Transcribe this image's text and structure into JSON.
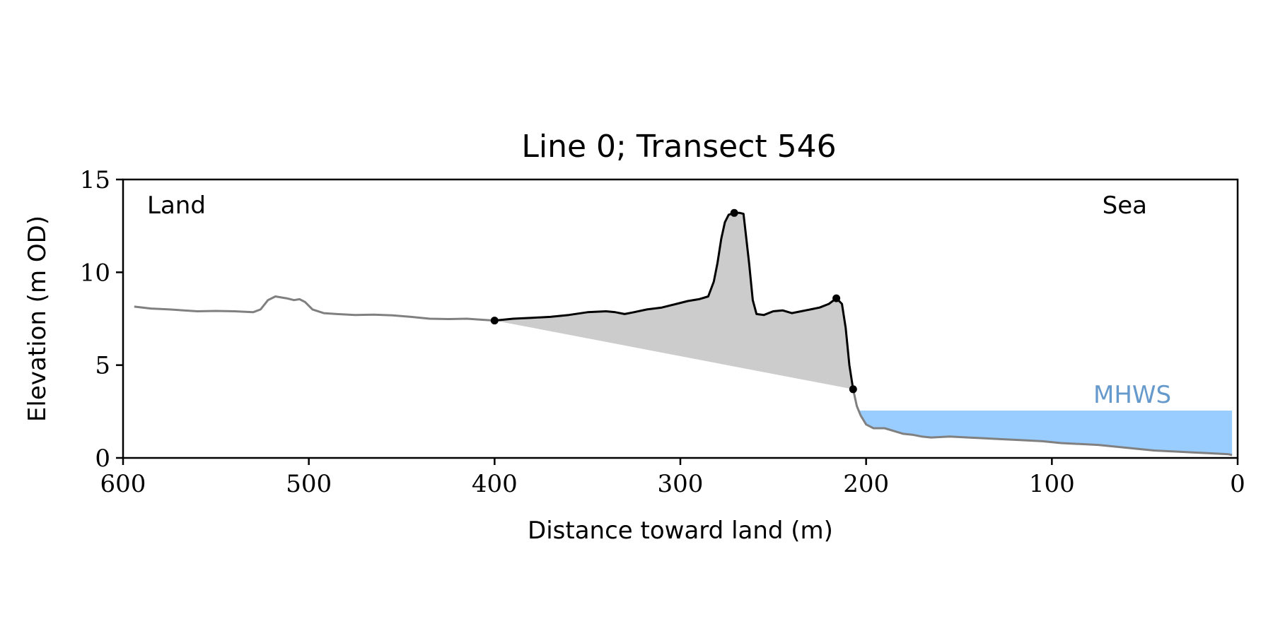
{
  "chart_data": {
    "type": "line",
    "title": "Line 0; Transect 546",
    "xlabel": "Distance toward land (m)",
    "ylabel": "Elevation (m OD)",
    "xlim": [
      600,
      0
    ],
    "ylim": [
      0,
      15
    ],
    "x_ticks": [
      600,
      500,
      400,
      300,
      200,
      100,
      0
    ],
    "y_ticks": [
      0,
      5,
      10,
      15
    ],
    "grid": false,
    "annotations": {
      "land": "Land",
      "sea": "Sea",
      "mhws": "MHWS"
    },
    "mhws_level": 2.55,
    "colors": {
      "profile": "#808080",
      "dune": "#000000",
      "fill": "#cccccc",
      "mhws_fill": "#99ccff",
      "mhws_text": "#6699cc"
    },
    "series": [
      {
        "values": [
          [
            594,
            8.15
          ],
          [
            585,
            8.05
          ],
          [
            575,
            8.0
          ],
          [
            560,
            7.9
          ],
          [
            550,
            7.92
          ],
          [
            540,
            7.9
          ],
          [
            530,
            7.85
          ],
          [
            526,
            8.0
          ],
          [
            522,
            8.5
          ],
          [
            518,
            8.7
          ],
          [
            512,
            8.6
          ],
          [
            508,
            8.5
          ],
          [
            505,
            8.55
          ],
          [
            502,
            8.4
          ],
          [
            498,
            8.0
          ],
          [
            492,
            7.8
          ],
          [
            485,
            7.75
          ],
          [
            475,
            7.7
          ],
          [
            465,
            7.72
          ],
          [
            455,
            7.68
          ],
          [
            445,
            7.6
          ],
          [
            435,
            7.5
          ],
          [
            425,
            7.48
          ],
          [
            415,
            7.5
          ],
          [
            408,
            7.45
          ],
          [
            400,
            7.4
          ]
        ]
      },
      {
        "values": [
          [
            400,
            7.4
          ],
          [
            390,
            7.5
          ],
          [
            380,
            7.55
          ],
          [
            370,
            7.6
          ],
          [
            360,
            7.7
          ],
          [
            350,
            7.85
          ],
          [
            340,
            7.9
          ],
          [
            335,
            7.85
          ],
          [
            330,
            7.75
          ],
          [
            325,
            7.85
          ],
          [
            318,
            8.0
          ],
          [
            310,
            8.1
          ],
          [
            302,
            8.3
          ],
          [
            296,
            8.45
          ],
          [
            290,
            8.55
          ],
          [
            285,
            8.7
          ],
          [
            282,
            9.5
          ],
          [
            280,
            10.5
          ],
          [
            278,
            11.8
          ],
          [
            276,
            12.7
          ],
          [
            274,
            13.1
          ],
          [
            271,
            13.2
          ],
          [
            268,
            13.2
          ],
          [
            266,
            13.15
          ],
          [
            263,
            10.5
          ],
          [
            261,
            8.5
          ],
          [
            259,
            7.75
          ],
          [
            255,
            7.7
          ],
          [
            250,
            7.9
          ],
          [
            245,
            7.95
          ],
          [
            240,
            7.8
          ],
          [
            235,
            7.9
          ],
          [
            230,
            8.0
          ],
          [
            225,
            8.1
          ],
          [
            220,
            8.3
          ],
          [
            216,
            8.6
          ],
          [
            213,
            8.3
          ],
          [
            211,
            7.0
          ],
          [
            209,
            5.0
          ],
          [
            207,
            3.7
          ]
        ]
      },
      {
        "values": [
          [
            207,
            3.7
          ],
          [
            205,
            2.8
          ],
          [
            203,
            2.3
          ],
          [
            200,
            1.8
          ],
          [
            196,
            1.6
          ],
          [
            190,
            1.6
          ],
          [
            185,
            1.45
          ],
          [
            180,
            1.3
          ],
          [
            175,
            1.25
          ],
          [
            170,
            1.15
          ],
          [
            165,
            1.1
          ],
          [
            155,
            1.15
          ],
          [
            145,
            1.1
          ],
          [
            135,
            1.05
          ],
          [
            125,
            1.0
          ],
          [
            115,
            0.95
          ],
          [
            105,
            0.9
          ],
          [
            95,
            0.8
          ],
          [
            85,
            0.75
          ],
          [
            75,
            0.7
          ],
          [
            65,
            0.6
          ],
          [
            55,
            0.5
          ],
          [
            45,
            0.4
          ],
          [
            35,
            0.35
          ],
          [
            25,
            0.3
          ],
          [
            15,
            0.25
          ],
          [
            5,
            0.2
          ],
          [
            3,
            0.15
          ]
        ]
      }
    ],
    "dune_baseline": [
      [
        400,
        7.4
      ],
      [
        207,
        3.7
      ]
    ],
    "markers": [
      [
        400,
        7.4
      ],
      [
        271,
        13.2
      ],
      [
        216,
        8.6
      ],
      [
        207,
        3.7
      ]
    ],
    "mhws_region": {
      "x_from": 204,
      "x_to": 3
    }
  }
}
